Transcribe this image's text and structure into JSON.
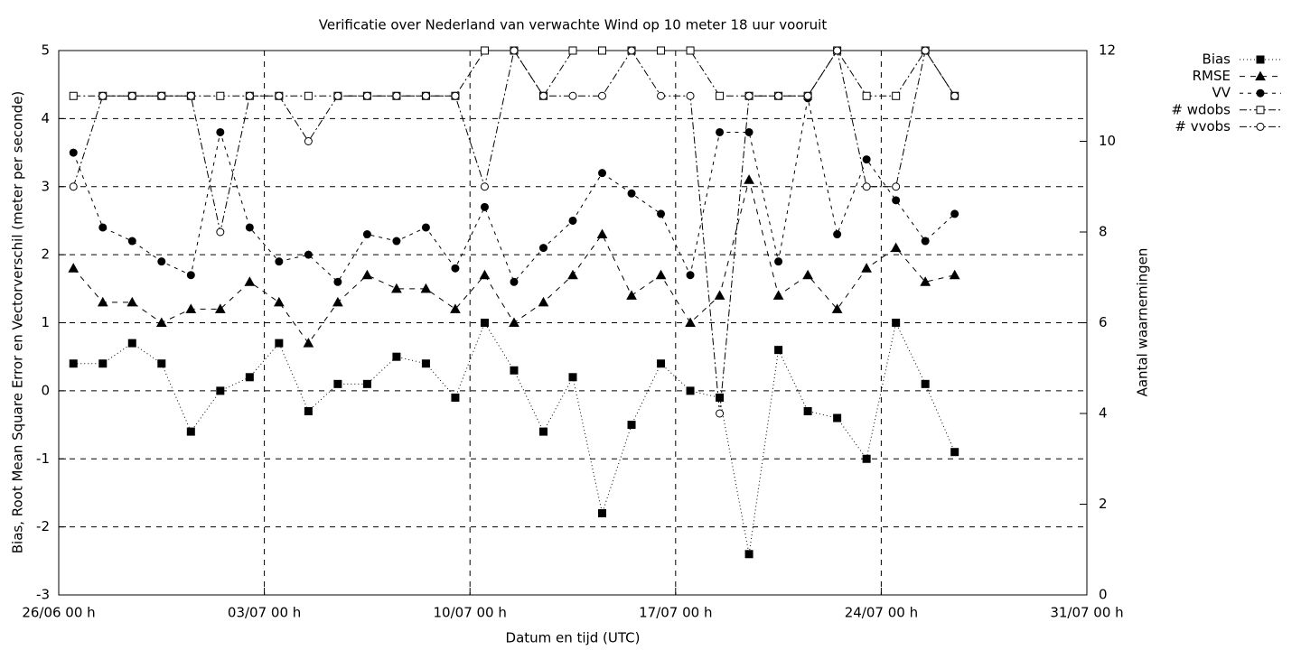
{
  "chart_data": {
    "type": "line",
    "title": "Verificatie over Nederland van verwachte Wind op 10 meter 18 uur vooruit",
    "x_label": "Datum en tijd (UTC)",
    "y_label": "Bias, Root Mean Square Error en Vectorverschil (meter per seconde)",
    "y2_label": "Aantal waarnemingen",
    "x": [
      0.5,
      1.5,
      2.5,
      3.5,
      4.5,
      5.5,
      6.5,
      7.5,
      8.5,
      9.5,
      10.5,
      11.5,
      12.5,
      13.5,
      14.5,
      15.5,
      16.5,
      17.5,
      18.5,
      19.5,
      20.5,
      21.5,
      22.5,
      23.5,
      24.5,
      25.5,
      26.5,
      27.5,
      28.5,
      29.5,
      30.5
    ],
    "xlim": [
      0,
      35
    ],
    "xticks": [
      {
        "value": 0,
        "label": "26/06 00 h"
      },
      {
        "value": 7,
        "label": "03/07 00 h"
      },
      {
        "value": 14,
        "label": "10/07 00 h"
      },
      {
        "value": 21,
        "label": "17/07 00 h"
      },
      {
        "value": 28,
        "label": "24/07 00 h"
      },
      {
        "value": 35,
        "label": "31/07 00 h"
      }
    ],
    "ylim": [
      -3,
      5
    ],
    "yticks": [
      -3,
      -2,
      -1,
      0,
      1,
      2,
      3,
      4,
      5
    ],
    "y2lim": [
      0,
      12
    ],
    "y2ticks": [
      0,
      2,
      4,
      6,
      8,
      10,
      12
    ],
    "grid": true,
    "legend": "outside-top-right",
    "series": [
      {
        "name": "Bias",
        "color": "#000000",
        "marker": "square-filled",
        "dash": "1 3",
        "values": [
          0.4,
          0.4,
          0.7,
          0.4,
          -0.6,
          0.0,
          0.2,
          0.7,
          -0.3,
          0.1,
          0.1,
          0.5,
          0.4,
          -0.1,
          1.0,
          0.3,
          -0.6,
          0.2,
          -1.8,
          -0.5,
          0.4,
          0.0,
          -0.1,
          -2.4,
          0.6,
          -0.3,
          -0.4,
          -1.0,
          1.0,
          0.1,
          -0.9
        ]
      },
      {
        "name": "RMSE",
        "color": "#000000",
        "marker": "triangle-filled",
        "dash": "6 6",
        "values": [
          1.8,
          1.3,
          1.3,
          1.0,
          1.2,
          1.2,
          1.6,
          1.3,
          0.7,
          1.3,
          1.7,
          1.5,
          1.5,
          1.2,
          1.7,
          1.0,
          1.3,
          1.7,
          2.3,
          1.4,
          1.7,
          1.0,
          1.4,
          3.1,
          1.4,
          1.7,
          1.2,
          1.8,
          2.1,
          1.6,
          1.7
        ]
      },
      {
        "name": "VV",
        "color": "#000000",
        "marker": "circle-filled",
        "dash": "4 5",
        "values": [
          3.5,
          2.4,
          2.2,
          1.9,
          1.7,
          3.8,
          2.4,
          1.9,
          2.0,
          1.6,
          2.3,
          2.2,
          2.4,
          1.8,
          2.7,
          1.6,
          2.1,
          2.5,
          3.2,
          2.9,
          2.6,
          1.7,
          3.8,
          3.8,
          1.9,
          4.3,
          2.3,
          3.4,
          2.8,
          2.2,
          2.6
        ]
      },
      {
        "name": "# wdobs",
        "color": "#000000",
        "marker": "square-open",
        "dash": "8 3 2 3",
        "axis": "y2",
        "values": [
          11,
          11,
          11,
          11,
          11,
          11,
          11,
          11,
          11,
          11,
          11,
          11,
          11,
          11,
          12,
          12,
          11,
          12,
          12,
          12,
          12,
          12,
          11,
          11,
          11,
          11,
          12,
          11,
          11,
          12,
          11
        ]
      },
      {
        "name": "# vvobs",
        "color": "#000000",
        "marker": "circle-open",
        "dash": "8 3 2 3",
        "axis": "y2",
        "values": [
          9,
          11,
          11,
          11,
          11,
          8,
          11,
          11,
          10,
          11,
          11,
          11,
          11,
          11,
          9,
          12,
          11,
          11,
          11,
          12,
          11,
          11,
          4,
          11,
          11,
          11,
          12,
          9,
          9,
          12,
          11
        ]
      }
    ]
  }
}
